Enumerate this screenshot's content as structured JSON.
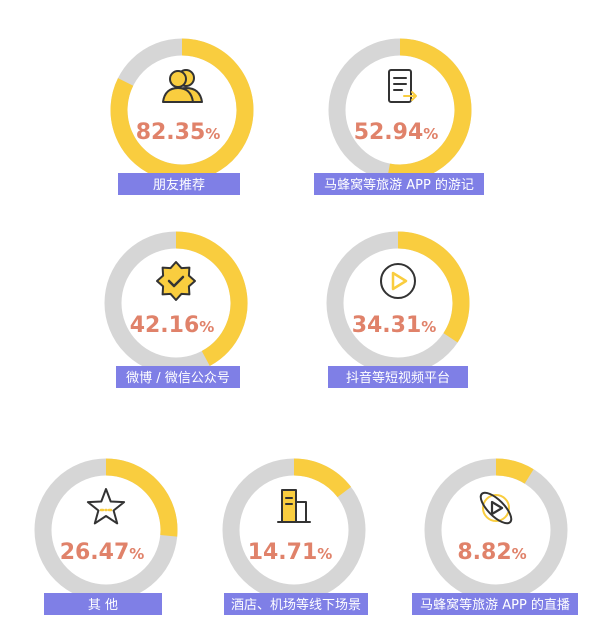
{
  "colors": {
    "filled": "#f9cd3f",
    "track": "#d6d6d6",
    "percent": "#e0826a",
    "label_bg": "#7f7fe6",
    "label_text": "#ffffff",
    "icon_stroke": "#333333",
    "icon_accent": "#f9cd3f"
  },
  "chart_data": {
    "type": "pie",
    "unit": "%",
    "items": [
      {
        "label": "朋友推荐",
        "value": 82.35,
        "display": "82.35",
        "icon": "users-icon"
      },
      {
        "label": "马蜂窝等旅游 APP 的游记",
        "value": 52.94,
        "display": "52.94",
        "icon": "document-icon"
      },
      {
        "label": "微博 / 微信公众号",
        "value": 42.16,
        "display": "42.16",
        "icon": "verified-badge-icon"
      },
      {
        "label": "抖音等短视频平台",
        "value": 34.31,
        "display": "34.31",
        "icon": "play-icon"
      },
      {
        "label": "其  他",
        "value": 26.47,
        "display": "26.47",
        "icon": "star-icon"
      },
      {
        "label": "酒店、机场等线下场景",
        "value": 14.71,
        "display": "14.71",
        "icon": "building-icon"
      },
      {
        "label": "马蜂窝等旅游 APP 的直播",
        "value": 8.82,
        "display": "8.82",
        "icon": "live-orbit-icon"
      }
    ]
  }
}
